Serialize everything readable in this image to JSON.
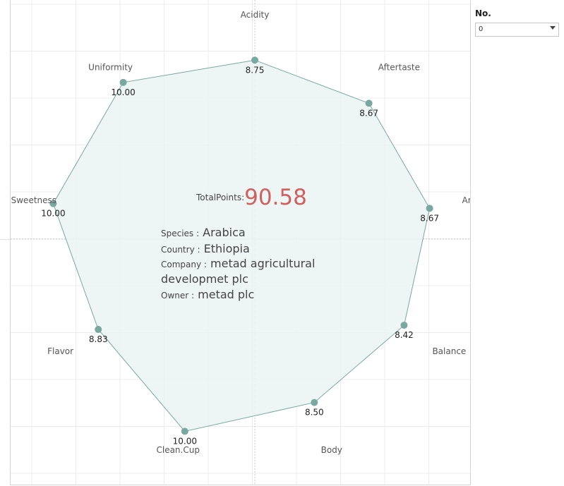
{
  "filter": {
    "title": "No.",
    "value": "0"
  },
  "info": {
    "total_key": "TotalPoints:",
    "total_value": "90.58",
    "species_key": "Species :",
    "species_value": "Arabica",
    "country_key": "Country :",
    "country_value": "Ethiopia",
    "company_key": "Company :",
    "company_value_line1": "metad agricultural",
    "company_value_line2": "developmet plc",
    "owner_key": "Owner :",
    "owner_value": "metad plc"
  },
  "colors": {
    "accent": "#d06060",
    "series": "#78a8a0",
    "fill": "#eaf5f3"
  },
  "chart_data": {
    "type": "radar",
    "title": "",
    "axes": [
      "Acidity",
      "Aftertaste",
      "Aroma",
      "Balance",
      "Body",
      "Clean.Cup",
      "Flavor",
      "Sweetness",
      "Uniformity"
    ],
    "values": [
      8.75,
      8.67,
      8.67,
      8.42,
      8.5,
      10.0,
      8.83,
      10.0,
      10.0
    ],
    "value_labels": [
      "8.75",
      "8.67",
      "8.67",
      "8.42",
      "8.50",
      "10.00",
      "8.83",
      "10.00",
      "10.00"
    ],
    "grid": true
  }
}
